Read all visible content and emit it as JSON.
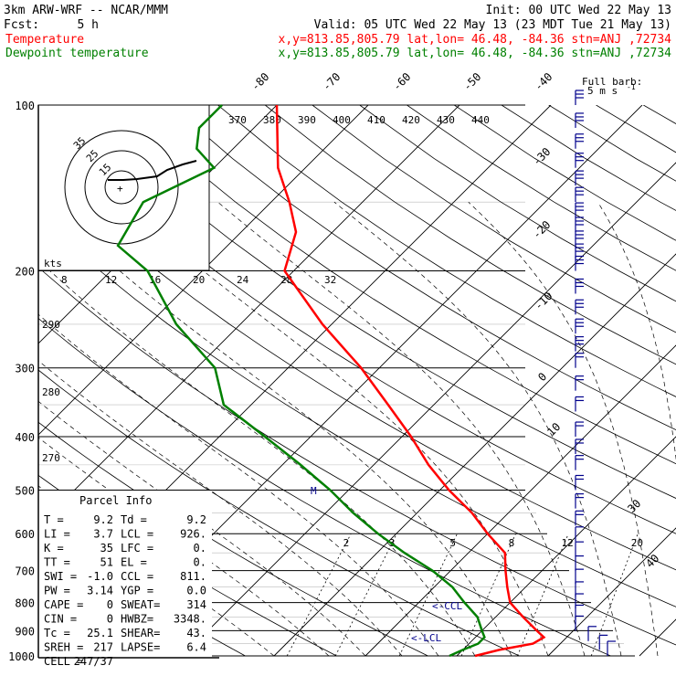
{
  "header": {
    "model": "3km ARW-WRF -- NCAR/MMM",
    "init": "Init: 00 UTC Wed 22 May 13",
    "fcst_label": "Fcst:",
    "fcst_value": "5 h",
    "valid": "Valid: 05 UTC Wed 22 May 13 (23 MDT Tue 21 May 13)",
    "temp_label": "Temperature",
    "dew_label": "Dewpoint temperature",
    "loc_info": "x,y=813.85,805.79   lat,lon= 46.48, -84.36   stn=ANJ ,72734"
  },
  "barb_legend": {
    "line1": "Full barb:",
    "line2": "5 m s",
    "exp": "-1"
  },
  "colors": {
    "temperature": "#ff0000",
    "dewpoint": "#008000",
    "text_info": "#00008b",
    "wind_barb": "#00008b",
    "hodo_line": "#000000"
  },
  "chart_data": {
    "type": "line",
    "subtype": "skew-T log-P",
    "pressure_levels": [
      100,
      200,
      300,
      400,
      500,
      600,
      700,
      800,
      900,
      1000
    ],
    "isotherm_labels": [
      "-80",
      "-70",
      "-60",
      "-50",
      "-40",
      "-30",
      "-20",
      "-10",
      "0",
      "10",
      "30",
      "40"
    ],
    "mixing_ratio_labels": [
      "2",
      "3",
      "5",
      "8",
      "12",
      "20"
    ],
    "theta_e_labels": [
      "370",
      "380",
      "390",
      "400",
      "410",
      "420",
      "430",
      "440"
    ],
    "dry_adiabat_labels": [
      "290",
      "280",
      "270"
    ],
    "hodo_axis_labels": [
      "8",
      "12",
      "16",
      "20",
      "24",
      "28",
      "32"
    ],
    "hodo_units": "kts",
    "hodo_ring_labels": [
      "15",
      "25",
      "35"
    ],
    "parcel_marker": "M",
    "lcl_markers": [
      "<-CCL",
      "<-LCL"
    ],
    "series": [
      {
        "name": "Temperature",
        "points": [
          [
            1000,
            12
          ],
          [
            975,
            14
          ],
          [
            950,
            17
          ],
          [
            925,
            17.5
          ],
          [
            900,
            16
          ],
          [
            850,
            13
          ],
          [
            800,
            10
          ],
          [
            750,
            8
          ],
          [
            700,
            6
          ],
          [
            650,
            4
          ],
          [
            600,
            0
          ],
          [
            550,
            -4
          ],
          [
            500,
            -9
          ],
          [
            450,
            -14
          ],
          [
            400,
            -19
          ],
          [
            350,
            -25
          ],
          [
            300,
            -32
          ],
          [
            250,
            -41
          ],
          [
            200,
            -51
          ],
          [
            170,
            -54
          ],
          [
            150,
            -58
          ],
          [
            130,
            -63
          ],
          [
            100,
            -70
          ]
        ]
      },
      {
        "name": "Dewpoint temperature",
        "points": [
          [
            1000,
            9.2
          ],
          [
            975,
            10
          ],
          [
            950,
            11
          ],
          [
            925,
            11
          ],
          [
            900,
            10
          ],
          [
            850,
            8
          ],
          [
            800,
            5
          ],
          [
            750,
            2
          ],
          [
            700,
            -2
          ],
          [
            650,
            -7
          ],
          [
            600,
            -12
          ],
          [
            550,
            -17
          ],
          [
            500,
            -22
          ],
          [
            450,
            -28
          ],
          [
            400,
            -35
          ],
          [
            350,
            -43
          ],
          [
            300,
            -48
          ],
          [
            250,
            -57
          ],
          [
            200,
            -66
          ],
          [
            180,
            -72
          ],
          [
            150,
            -74
          ],
          [
            130,
            -70
          ],
          [
            120,
            -74
          ],
          [
            110,
            -76
          ],
          [
            100,
            -76
          ]
        ]
      }
    ]
  },
  "parcel_info": {
    "title": "Parcel Info",
    "rows": [
      [
        "T  =",
        "9.2",
        "Td =",
        "9.2"
      ],
      [
        "LI =",
        "3.7",
        "LCL =",
        "926."
      ],
      [
        "K  =",
        "35",
        "LFC =",
        "0."
      ],
      [
        "TT =",
        "51",
        "EL  =",
        "0."
      ],
      [
        "SWI =",
        "-1.0",
        "CCL =",
        "811."
      ],
      [
        "PW =",
        "3.14",
        "YGP =",
        "0.0"
      ],
      [
        "CAPE =",
        "0",
        "SWEAT=",
        "314"
      ],
      [
        "CIN =",
        "0",
        "HWBZ=",
        "3348."
      ],
      [
        "Tc =",
        "25.1",
        "SHEAR=",
        "43."
      ],
      [
        "SREH =",
        "217",
        "LAPSE=",
        "6.4"
      ],
      [
        "CELL =",
        "247/37",
        "",
        ""
      ]
    ]
  }
}
